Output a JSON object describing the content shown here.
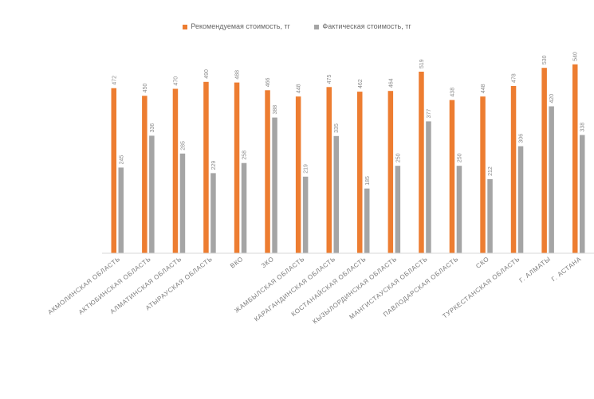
{
  "chart_data": {
    "type": "bar",
    "title": "",
    "xlabel": "",
    "ylabel": "",
    "ylim": [
      0,
      560
    ],
    "grid": false,
    "legend_position": "top",
    "categories": [
      "АКМОЛИНСКАЯ ОБЛАСТЬ",
      "АКТЮБИНСКАЯ ОБЛАСТЬ",
      "АЛМАТИНСКАЯ ОБЛАСТЬ",
      "АТЫРАУСКАЯ ОБЛАСТЬ",
      "ВКО",
      "ЗКО",
      "ЖАМБЫЛСКАЯ ОБЛАСТЬ",
      "КАРАГАНДИНСКАЯ ОБЛАСТЬ",
      "КОСТАНАЙСКАЯ ОБЛАСТЬ",
      "КЫЗЫЛОРДИНСКАЯ ОБЛАСТЬ",
      "МАНГИСТАУСКАЯ ОБЛАСТЬ",
      "ПАВЛОДАРСКАЯ ОБЛАСТЬ",
      "СКО",
      "ТУРКЕСТАНСКАЯ ОБЛАСТЬ",
      "Г. АЛМАТЫ",
      "Г. АСТАНА"
    ],
    "series": [
      {
        "name": "Рекомендуемая стоимость, тг",
        "color": "#ED7D31",
        "values": [
          472,
          450,
          470,
          490,
          488,
          466,
          448,
          475,
          462,
          464,
          519,
          438,
          448,
          478,
          530,
          540
        ]
      },
      {
        "name": "Фактическая стоимость, тг",
        "color": "#A5A5A5",
        "values": [
          245,
          336,
          285,
          229,
          258,
          388,
          219,
          335,
          185,
          250,
          377,
          250,
          212,
          306,
          420,
          338
        ]
      }
    ]
  }
}
